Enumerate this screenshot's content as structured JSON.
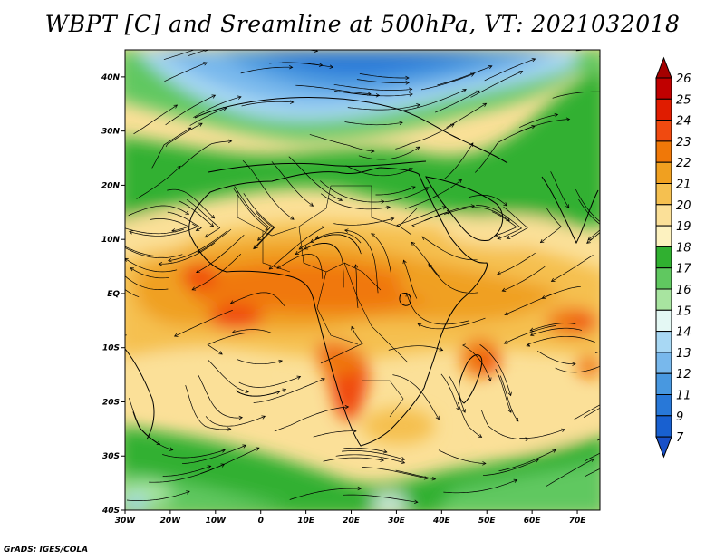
{
  "title": "WBPT [C] and Sreamline at 500hPa, VT: 2021032018",
  "credit": "GrADS: IGES/COLA",
  "map": {
    "lat_range": [
      -40,
      45
    ],
    "lon_range": [
      -30,
      75
    ],
    "lat_ticks": [
      {
        "value": 40,
        "label": "40N"
      },
      {
        "value": 30,
        "label": "30N"
      },
      {
        "value": 20,
        "label": "20N"
      },
      {
        "value": 10,
        "label": "10N"
      },
      {
        "value": 0,
        "label": "EQ"
      },
      {
        "value": -10,
        "label": "10S"
      },
      {
        "value": -20,
        "label": "20S"
      },
      {
        "value": -30,
        "label": "30S"
      },
      {
        "value": -40,
        "label": "40S"
      }
    ],
    "lon_ticks": [
      {
        "value": -30,
        "label": "30W"
      },
      {
        "value": -20,
        "label": "20W"
      },
      {
        "value": -10,
        "label": "10W"
      },
      {
        "value": 0,
        "label": "0"
      },
      {
        "value": 10,
        "label": "10E"
      },
      {
        "value": 20,
        "label": "20E"
      },
      {
        "value": 30,
        "label": "30E"
      },
      {
        "value": 40,
        "label": "40E"
      },
      {
        "value": 50,
        "label": "50E"
      },
      {
        "value": 60,
        "label": "60E"
      },
      {
        "value": 70,
        "label": "70E"
      }
    ]
  },
  "colorbar": {
    "levels": [
      "26",
      "25",
      "24",
      "23",
      "22",
      "21",
      "20",
      "19",
      "18",
      "17",
      "16",
      "15",
      "14",
      "13",
      "12",
      "11",
      "9",
      "7"
    ],
    "colors": {
      "above_26": "#a50000",
      "25_26": "#c00000",
      "24_25": "#e01c00",
      "23_24": "#f04a10",
      "22_23": "#f07808",
      "21_22": "#f0a020",
      "20_21": "#f5c050",
      "19_20": "#fbe098",
      "18_19": "#fdf2c0",
      "17_18": "#30b030",
      "16_17": "#60c860",
      "15_16": "#a8e4a0",
      "14_15": "#e4f8f4",
      "13_14": "#a8d8f4",
      "12_13": "#78b8ec",
      "11_12": "#4898e0",
      "9_11": "#2878d8",
      "7_9": "#1860d0",
      "below_7": "#1850c8"
    }
  }
}
